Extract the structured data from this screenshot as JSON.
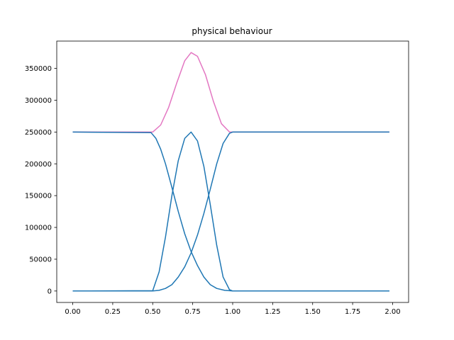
{
  "chart_data": {
    "type": "line",
    "title": "physical behaviour",
    "xlabel": "",
    "ylabel": "",
    "xlim": [
      -0.1,
      2.1
    ],
    "ylim": [
      -18000,
      393000
    ],
    "grid": false,
    "x_ticks": [
      0.0,
      0.25,
      0.5,
      0.75,
      1.0,
      1.25,
      1.5,
      1.75,
      2.0
    ],
    "x_tick_labels": [
      "0.00",
      "0.25",
      "0.50",
      "0.75",
      "1.00",
      "1.25",
      "1.50",
      "1.75",
      "2.00"
    ],
    "y_ticks": [
      0,
      50000,
      100000,
      150000,
      200000,
      250000,
      300000,
      350000
    ],
    "y_tick_labels": [
      "0",
      "50000",
      "100000",
      "150000",
      "200000",
      "250000",
      "300000",
      "350000"
    ],
    "colors": {
      "blue": "#1f77b4",
      "pink": "#e377c2"
    },
    "series": [
      {
        "color": "#e377c2",
        "x": [
          0.0,
          0.5,
          0.55,
          0.6,
          0.65,
          0.7,
          0.74,
          0.78,
          0.83,
          0.88,
          0.93,
          0.98,
          1.0,
          1.5,
          1.98
        ],
        "y": [
          250000,
          250000,
          261000,
          289000,
          327000,
          362000,
          375000,
          369000,
          340000,
          298000,
          263000,
          250000,
          250000,
          250000,
          250000
        ]
      },
      {
        "color": "#1f77b4",
        "x": [
          0.0,
          0.49,
          0.52,
          0.55,
          0.58,
          0.62,
          0.66,
          0.7,
          0.74,
          0.78,
          0.82,
          0.86,
          0.9,
          0.95,
          1.0,
          1.5,
          1.98
        ],
        "y": [
          250000,
          249000,
          240000,
          223000,
          200000,
          163000,
          125000,
          90000,
          62000,
          40000,
          22000,
          10000,
          4000,
          1000,
          0,
          0,
          0
        ]
      },
      {
        "color": "#1f77b4",
        "x": [
          0.0,
          0.5,
          0.54,
          0.58,
          0.62,
          0.66,
          0.7,
          0.74,
          0.78,
          0.82,
          0.86,
          0.9,
          0.94,
          0.98,
          1.0,
          1.5,
          1.98
        ],
        "y": [
          0,
          500,
          30000,
          85000,
          150000,
          205000,
          240000,
          250000,
          236000,
          196000,
          136000,
          72000,
          22000,
          2000,
          0,
          0,
          0
        ]
      },
      {
        "color": "#1f77b4",
        "x": [
          0.0,
          0.5,
          0.54,
          0.58,
          0.62,
          0.66,
          0.7,
          0.74,
          0.78,
          0.82,
          0.86,
          0.9,
          0.94,
          0.98,
          1.0,
          1.5,
          1.98
        ],
        "y": [
          0,
          0,
          1000,
          4000,
          10000,
          22000,
          38000,
          60000,
          88000,
          122000,
          160000,
          200000,
          232000,
          248000,
          250000,
          250000,
          250000
        ]
      }
    ]
  }
}
